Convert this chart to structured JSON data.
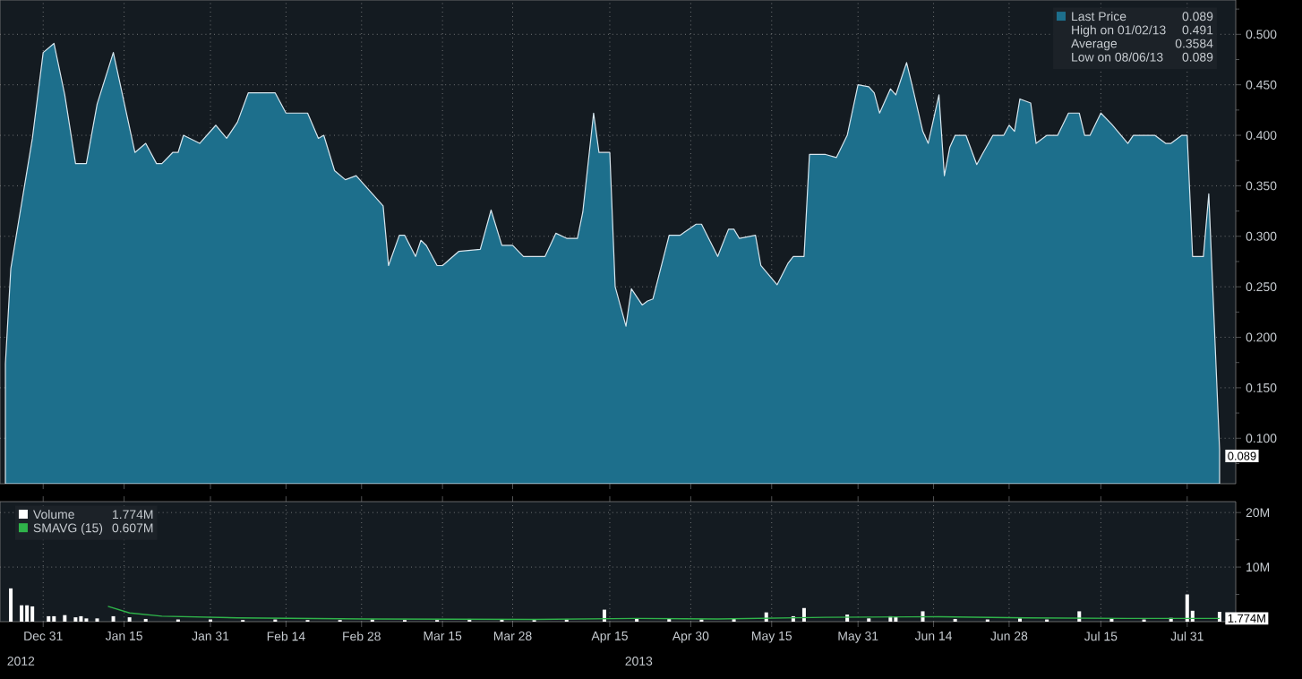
{
  "chart_data": [
    {
      "type": "area",
      "grid": true,
      "legend": "top right",
      "tick_labels": "y",
      "xlim": [
        "2012-12-23",
        "2013-08-09"
      ],
      "xticks": [
        {
          "value": "2012-12-31",
          "label": null
        },
        {
          "value": "2013-01-15",
          "label": null
        },
        {
          "value": "2013-01-31",
          "label": null
        },
        {
          "value": "2013-02-14",
          "label": null
        },
        {
          "value": "2013-02-28",
          "label": null
        },
        {
          "value": "2013-03-15",
          "label": null
        },
        {
          "value": "2013-03-28",
          "label": null
        },
        {
          "value": "2013-04-15",
          "label": null
        },
        {
          "value": "2013-04-30",
          "label": null
        },
        {
          "value": "2013-05-15",
          "label": null
        },
        {
          "value": "2013-05-31",
          "label": null
        },
        {
          "value": "2013-06-14",
          "label": null
        },
        {
          "value": "2013-06-28",
          "label": null
        },
        {
          "value": "2013-07-15",
          "label": null
        },
        {
          "value": "2013-07-31",
          "label": null
        }
      ],
      "ylim": [
        0.055,
        0.534
      ],
      "yticks": [
        {
          "value": 0.075,
          "label": null
        },
        {
          "value": 0.1,
          "label": "0.100"
        },
        {
          "value": 0.125,
          "label": null
        },
        {
          "value": 0.15,
          "label": "0.150"
        },
        {
          "value": 0.175,
          "label": null
        },
        {
          "value": 0.2,
          "label": "0.200"
        },
        {
          "value": 0.225,
          "label": null
        },
        {
          "value": 0.25,
          "label": "0.250"
        },
        {
          "value": 0.275,
          "label": null
        },
        {
          "value": 0.3,
          "label": "0.300"
        },
        {
          "value": 0.325,
          "label": null
        },
        {
          "value": 0.35,
          "label": "0.350"
        },
        {
          "value": 0.375,
          "label": null
        },
        {
          "value": 0.4,
          "label": "0.400"
        },
        {
          "value": 0.425,
          "label": null
        },
        {
          "value": 0.45,
          "label": "0.450"
        },
        {
          "value": 0.475,
          "label": null
        },
        {
          "value": 0.5,
          "label": "0.500"
        },
        {
          "value": 0.525,
          "label": null
        }
      ],
      "annotations": [
        "0.089",
        "High on 01/02/13",
        "0.491",
        "Average",
        "0.3584",
        "Low on 08/06/13",
        "0.089",
        {
          "text": "0.089",
          "x": "2013-08-06",
          "y": 0.089
        }
      ],
      "series": [
        {
          "name": "Last Price",
          "color": "#1d6f8c",
          "x": [
            "2012-12-24",
            "2012-12-25",
            "2012-12-29",
            "2012-12-31",
            "2013-01-02",
            "2013-01-04",
            "2013-01-06",
            "2013-01-08",
            "2013-01-10",
            "2013-01-13",
            "2013-01-17",
            "2013-01-19",
            "2013-01-21",
            "2013-01-22",
            "2013-01-24",
            "2013-01-25",
            "2013-01-26",
            "2013-01-29",
            "2013-02-01",
            "2013-02-03",
            "2013-02-05",
            "2013-02-07",
            "2013-02-12",
            "2013-02-14",
            "2013-02-18",
            "2013-02-20",
            "2013-02-21",
            "2013-02-23",
            "2013-02-25",
            "2013-02-27",
            "2013-03-04",
            "2013-03-05",
            "2013-03-07",
            "2013-03-08",
            "2013-03-10",
            "2013-03-11",
            "2013-03-12",
            "2013-03-14",
            "2013-03-15",
            "2013-03-18",
            "2013-03-22",
            "2013-03-24",
            "2013-03-26",
            "2013-03-28",
            "2013-03-30",
            "2013-04-03",
            "2013-04-05",
            "2013-04-07",
            "2013-04-09",
            "2013-04-10",
            "2013-04-12",
            "2013-04-13",
            "2013-04-15",
            "2013-04-16",
            "2013-04-18",
            "2013-04-19",
            "2013-04-21",
            "2013-04-22",
            "2013-04-23",
            "2013-04-26",
            "2013-04-28",
            "2013-05-01",
            "2013-05-02",
            "2013-05-05",
            "2013-05-07",
            "2013-05-08",
            "2013-05-09",
            "2013-05-12",
            "2013-05-13",
            "2013-05-16",
            "2013-05-18",
            "2013-05-19",
            "2013-05-21",
            "2013-05-22",
            "2013-05-25",
            "2013-05-27",
            "2013-05-29",
            "2013-05-31",
            "2013-06-02",
            "2013-06-03",
            "2013-06-04",
            "2013-06-06",
            "2013-06-07",
            "2013-06-09",
            "2013-06-10",
            "2013-06-12",
            "2013-06-13",
            "2013-06-15",
            "2013-06-16",
            "2013-06-17",
            "2013-06-18",
            "2013-06-20",
            "2013-06-22",
            "2013-06-23",
            "2013-06-25",
            "2013-06-27",
            "2013-06-28",
            "2013-06-29",
            "2013-06-30",
            "2013-07-02",
            "2013-07-03",
            "2013-07-05",
            "2013-07-07",
            "2013-07-09",
            "2013-07-11",
            "2013-07-12",
            "2013-07-13",
            "2013-07-15",
            "2013-07-17",
            "2013-07-20",
            "2013-07-21",
            "2013-07-25",
            "2013-07-27",
            "2013-07-28",
            "2013-07-30",
            "2013-07-31",
            "2013-08-01",
            "2013-08-03",
            "2013-08-04",
            "2013-08-06"
          ],
          "values": [
            0.174,
            0.268,
            0.397,
            0.482,
            0.491,
            0.44,
            0.372,
            0.372,
            0.431,
            0.482,
            0.383,
            0.392,
            0.372,
            0.372,
            0.383,
            0.383,
            0.4,
            0.392,
            0.41,
            0.397,
            0.413,
            0.442,
            0.442,
            0.422,
            0.422,
            0.397,
            0.4,
            0.365,
            0.356,
            0.36,
            0.33,
            0.271,
            0.301,
            0.301,
            0.28,
            0.296,
            0.291,
            0.271,
            0.271,
            0.285,
            0.287,
            0.326,
            0.291,
            0.291,
            0.28,
            0.28,
            0.303,
            0.298,
            0.298,
            0.324,
            0.422,
            0.383,
            0.383,
            0.25,
            0.211,
            0.248,
            0.232,
            0.236,
            0.238,
            0.301,
            0.301,
            0.312,
            0.312,
            0.28,
            0.307,
            0.307,
            0.298,
            0.301,
            0.271,
            0.252,
            0.273,
            0.28,
            0.28,
            0.381,
            0.381,
            0.378,
            0.4,
            0.45,
            0.448,
            0.442,
            0.422,
            0.446,
            0.44,
            0.472,
            0.45,
            0.404,
            0.392,
            0.44,
            0.36,
            0.388,
            0.4,
            0.4,
            0.371,
            0.381,
            0.4,
            0.4,
            0.41,
            0.404,
            0.436,
            0.432,
            0.392,
            0.4,
            0.4,
            0.422,
            0.422,
            0.4,
            0.4,
            0.422,
            0.411,
            0.392,
            0.4,
            0.4,
            0.392,
            0.392,
            0.4,
            0.4,
            0.28,
            0.28,
            0.342,
            0.089
          ]
        }
      ]
    },
    {
      "type": "bar",
      "grid": true,
      "legend": "top left",
      "xlim": [
        "2012-12-23",
        "2013-08-09"
      ],
      "xticks": [
        {
          "value": "2012-12-31",
          "label": "Dec 31"
        },
        {
          "value": "2013-01-15",
          "label": "Jan 15"
        },
        {
          "value": "2013-01-31",
          "label": "Jan 31"
        },
        {
          "value": "2013-02-14",
          "label": "Feb 14"
        },
        {
          "value": "2013-02-28",
          "label": "Feb 28"
        },
        {
          "value": "2013-03-15",
          "label": "Mar 15"
        },
        {
          "value": "2013-03-28",
          "label": "Mar 28"
        },
        {
          "value": "2013-04-15",
          "label": "Apr 15"
        },
        {
          "value": "2013-04-30",
          "label": "Apr 30"
        },
        {
          "value": "2013-05-15",
          "label": "May 15"
        },
        {
          "value": "2013-05-31",
          "label": "May 31"
        },
        {
          "value": "2013-06-14",
          "label": "Jun 14"
        },
        {
          "value": "2013-06-28",
          "label": "Jun 28"
        },
        {
          "value": "2013-07-15",
          "label": "Jul 15"
        },
        {
          "value": "2013-07-31",
          "label": "Jul 31"
        }
      ],
      "ylim": [
        0,
        22
      ],
      "yticks": [
        {
          "value": 5,
          "label": null
        },
        {
          "value": 10,
          "label": "10M"
        },
        {
          "value": 15,
          "label": null
        },
        {
          "value": 20,
          "label": "20M"
        }
      ],
      "annotations": [
        "1.774M",
        "0.607M",
        {
          "text": "1.774M",
          "x": "2013-08-06",
          "y": 1.8
        },
        "2012",
        "2013"
      ],
      "series": [
        {
          "name": "Volume",
          "color": "#ffffff",
          "x": [
            "2012-12-25",
            "2012-12-27",
            "2012-12-28",
            "2012-12-29",
            "2013-01-01",
            "2013-01-02",
            "2013-01-04",
            "2013-01-06",
            "2013-01-07",
            "2013-01-08",
            "2013-01-10",
            "2013-01-13",
            "2013-01-16",
            "2013-01-19",
            "2013-01-25",
            "2013-01-31",
            "2013-02-06",
            "2013-02-12",
            "2013-02-18",
            "2013-02-24",
            "2013-03-02",
            "2013-03-08",
            "2013-03-14",
            "2013-03-20",
            "2013-03-26",
            "2013-04-01",
            "2013-04-07",
            "2013-04-14",
            "2013-04-20",
            "2013-04-26",
            "2013-05-02",
            "2013-05-08",
            "2013-05-14",
            "2013-05-19",
            "2013-05-21",
            "2013-05-29",
            "2013-06-02",
            "2013-06-06",
            "2013-06-07",
            "2013-06-12",
            "2013-06-18",
            "2013-06-24",
            "2013-06-30",
            "2013-07-05",
            "2013-07-11",
            "2013-07-17",
            "2013-07-23",
            "2013-07-28",
            "2013-07-31",
            "2013-08-01",
            "2013-08-06"
          ],
          "values": [
            6.1,
            3.0,
            3.0,
            2.8,
            1.0,
            1.0,
            1.2,
            0.8,
            1.0,
            0.6,
            0.6,
            1.0,
            0.8,
            0.5,
            0.4,
            0.4,
            0.3,
            0.4,
            0.3,
            0.3,
            0.4,
            0.3,
            0.3,
            0.5,
            0.4,
            0.3,
            0.4,
            2.2,
            0.6,
            0.5,
            0.4,
            0.5,
            1.7,
            1.0,
            2.5,
            1.3,
            0.6,
            1.0,
            0.9,
            1.9,
            0.5,
            0.4,
            0.6,
            0.4,
            1.9,
            0.5,
            0.4,
            0.7,
            5.0,
            2.0,
            1.8
          ]
        },
        {
          "name": "SMAVG (15)",
          "type": "line",
          "color": "#2fb34a",
          "x": [
            "2013-01-12",
            "2013-01-16",
            "2013-01-22",
            "2013-02-05",
            "2013-03-01",
            "2013-04-01",
            "2013-04-20",
            "2013-05-05",
            "2013-05-25",
            "2013-06-15",
            "2013-07-01",
            "2013-07-20",
            "2013-08-06"
          ],
          "values": [
            2.8,
            1.6,
            1.0,
            0.7,
            0.5,
            0.4,
            0.6,
            0.5,
            0.8,
            0.9,
            0.7,
            0.6,
            0.6
          ]
        }
      ]
    }
  ]
}
